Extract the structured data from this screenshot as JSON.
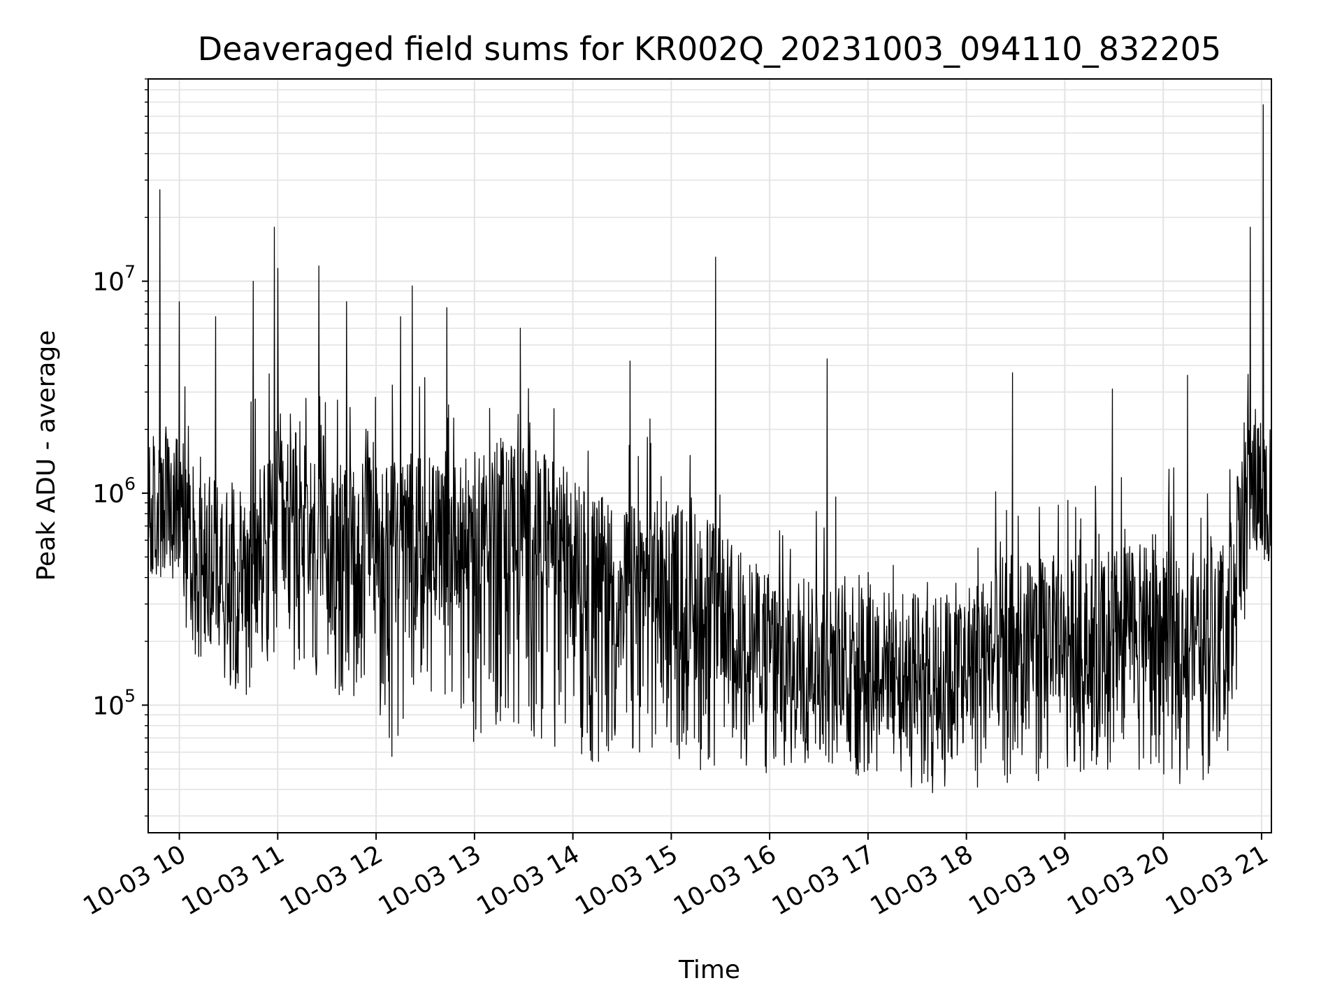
{
  "chart_data": {
    "type": "line",
    "title": "Deaveraged field sums for KR002Q_20231003_094110_832205",
    "xlabel": "Time",
    "ylabel": "Peak ADU - average",
    "y_scale": "log",
    "ylim": [
      25000,
      90000000
    ],
    "xlim": [
      "10-03 09:41",
      "10-03 21:06"
    ],
    "grid": "on (major and minor)",
    "line_color": "#000000",
    "x_ticks": [
      "10-03 10",
      "10-03 11",
      "10-03 12",
      "10-03 13",
      "10-03 14",
      "10-03 15",
      "10-03 16",
      "10-03 17",
      "10-03 18",
      "10-03 19",
      "10-03 20",
      "10-03 21"
    ],
    "y_ticks": [
      {
        "base": "10",
        "exp": "5"
      },
      {
        "base": "10",
        "exp": "6"
      },
      {
        "base": "10",
        "exp": "7"
      }
    ],
    "series": [
      {
        "x": [
          "10-03 09:41",
          "10-03 09:55",
          "10-03 10:10",
          "10-03 10:25",
          "10-03 10:40",
          "10-03 10:55",
          "10-03 11:10",
          "10-03 11:25",
          "10-03 11:40",
          "10-03 11:55",
          "10-03 12:10",
          "10-03 12:25",
          "10-03 12:40",
          "10-03 12:55",
          "10-03 13:10",
          "10-03 13:25",
          "10-03 13:40",
          "10-03 13:55",
          "10-03 14:10",
          "10-03 14:25",
          "10-03 14:40",
          "10-03 14:55",
          "10-03 15:10",
          "10-03 15:25",
          "10-03 15:40",
          "10-03 15:55",
          "10-03 16:10",
          "10-03 16:25",
          "10-03 16:40",
          "10-03 16:55",
          "10-03 17:10",
          "10-03 17:25",
          "10-03 17:40",
          "10-03 17:55",
          "10-03 18:10",
          "10-03 18:25",
          "10-03 18:40",
          "10-03 18:55",
          "10-03 19:10",
          "10-03 19:25",
          "10-03 19:40",
          "10-03 19:55",
          "10-03 20:10",
          "10-03 20:25",
          "10-03 20:40",
          "10-03 20:55",
          "10-03 21:04"
        ],
        "typical_y": [
          750000,
          900000,
          600000,
          500000,
          520000,
          700000,
          900000,
          650000,
          600000,
          700000,
          650000,
          700000,
          620000,
          650000,
          800000,
          850000,
          700000,
          600000,
          450000,
          380000,
          400000,
          420000,
          400000,
          330000,
          250000,
          200000,
          180000,
          200000,
          180000,
          190000,
          160000,
          150000,
          150000,
          170000,
          180000,
          190000,
          220000,
          230000,
          220000,
          240000,
          260000,
          250000,
          230000,
          240000,
          350000,
          1200000,
          900000
        ],
        "low_y": [
          400000,
          380000,
          170000,
          120000,
          110000,
          150000,
          120000,
          100000,
          110000,
          105000,
          55000,
          100000,
          120000,
          62000,
          65000,
          66000,
          70000,
          60000,
          48000,
          45000,
          60000,
          55000,
          50000,
          48000,
          50000,
          45000,
          48000,
          50000,
          48000,
          40000,
          45000,
          40000,
          38000,
          40000,
          40000,
          42000,
          38000,
          50000,
          48000,
          47000,
          50000,
          48000,
          42000,
          44000,
          60000,
          500000,
          480000
        ],
        "spikes": [
          {
            "x": "10-03 09:48",
            "y": 27000000
          },
          {
            "x": "10-03 10:00",
            "y": 8000000
          },
          {
            "x": "10-03 10:22",
            "y": 6800000
          },
          {
            "x": "10-03 10:45",
            "y": 10000000
          },
          {
            "x": "10-03 10:58",
            "y": 18000000
          },
          {
            "x": "10-03 11:00",
            "y": 11500000
          },
          {
            "x": "10-03 11:25",
            "y": 11800000
          },
          {
            "x": "10-03 11:42",
            "y": 8000000
          },
          {
            "x": "10-03 12:15",
            "y": 6800000
          },
          {
            "x": "10-03 12:22",
            "y": 9500000
          },
          {
            "x": "10-03 12:43",
            "y": 7500000
          },
          {
            "x": "10-03 13:28",
            "y": 6000000
          },
          {
            "x": "10-03 14:35",
            "y": 4200000
          },
          {
            "x": "10-03 15:27",
            "y": 13000000
          },
          {
            "x": "10-03 16:35",
            "y": 4300000
          },
          {
            "x": "10-03 18:28",
            "y": 3700000
          },
          {
            "x": "10-03 19:29",
            "y": 3100000
          },
          {
            "x": "10-03 20:15",
            "y": 3600000
          },
          {
            "x": "10-03 20:53",
            "y": 18000000
          },
          {
            "x": "10-03 21:01",
            "y": 68000000
          }
        ]
      }
    ]
  }
}
